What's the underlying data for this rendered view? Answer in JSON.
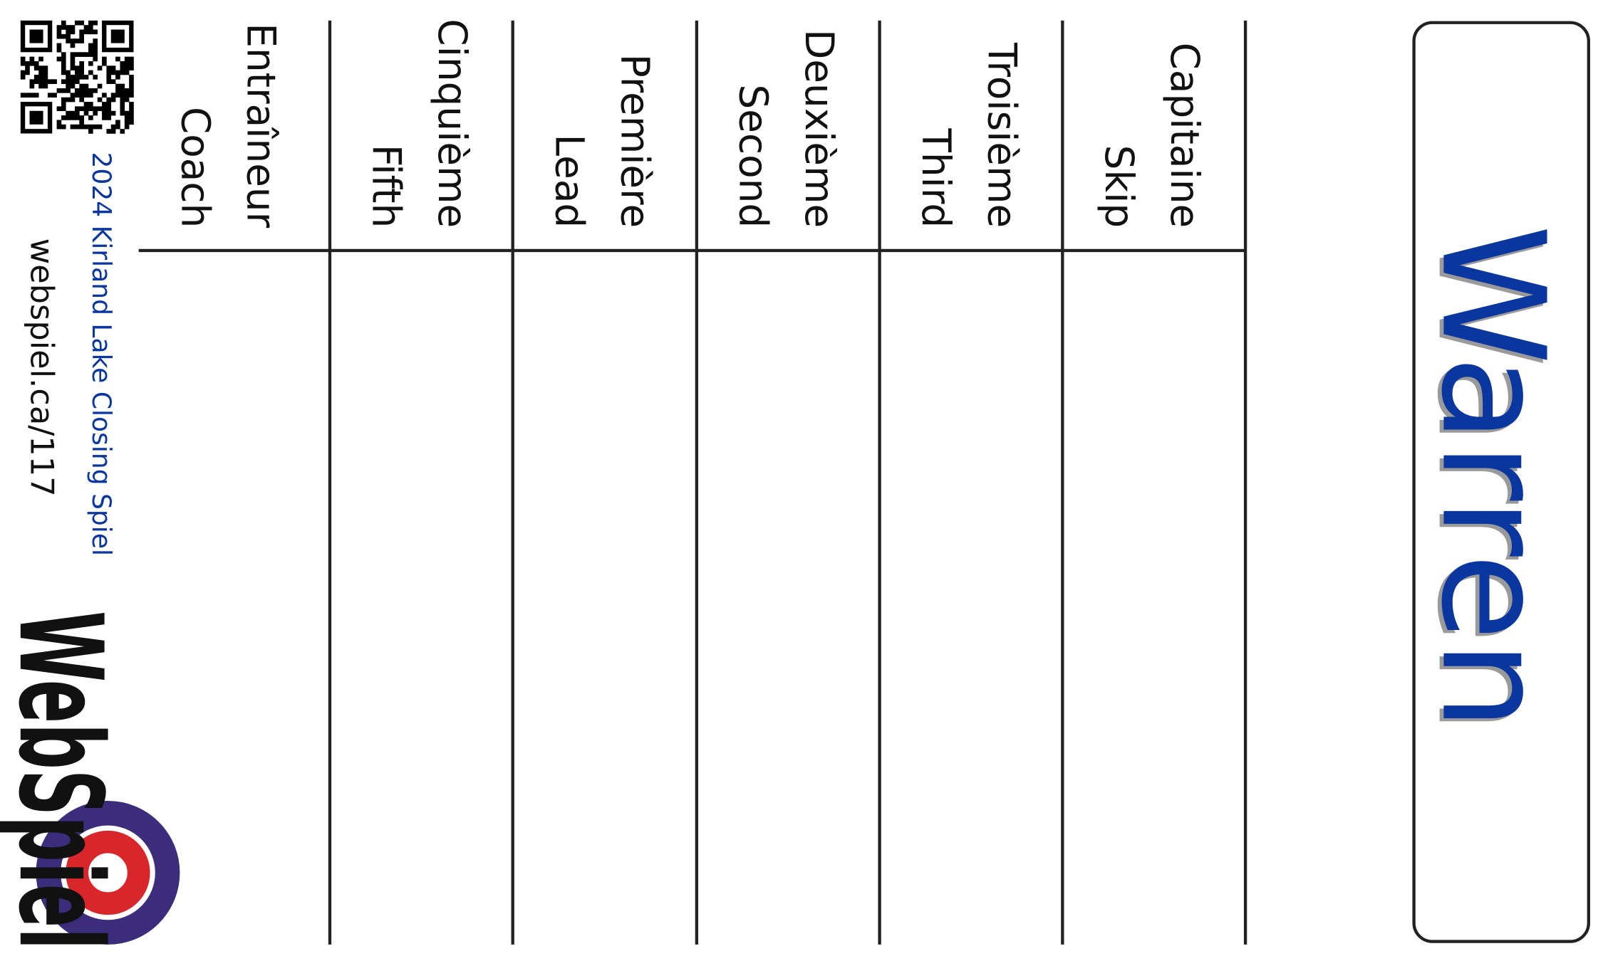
{
  "team": {
    "name": "Warren"
  },
  "positions": [
    {
      "french": "Capitaine",
      "english": "Skip"
    },
    {
      "french": "Troisième",
      "english": "Third"
    },
    {
      "french": "Deuxième",
      "english": "Second"
    },
    {
      "french": "Première",
      "english": "Lead"
    },
    {
      "french": "Cinquième",
      "english": "Fifth"
    },
    {
      "french": "Entraîneur",
      "english": "Coach"
    }
  ],
  "footer": {
    "event": "2024 Kirland Lake Closing Spiel",
    "url": "webspiel.ca/117",
    "logo": "WebSpiel"
  }
}
